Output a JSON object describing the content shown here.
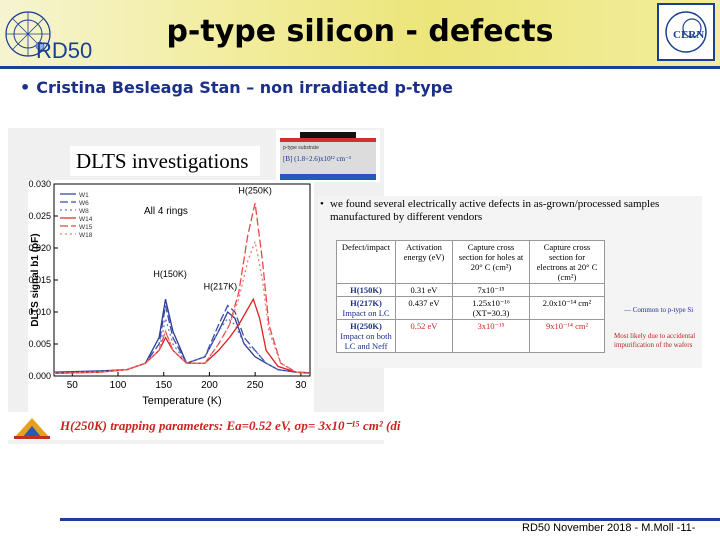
{
  "header": {
    "rd50_logo_text": "RD50",
    "title": "p-type silicon - defects",
    "cern_logo_text": "CERN"
  },
  "bullet": "Cristina Besleaga Stan – non irradiated p-type",
  "figure": {
    "dlts_title": "DLTS investigations",
    "inset_label_small": "p-type substrate",
    "inset_label_formula": "[B] (1.8÷2.6)x10¹² cm⁻³",
    "trap_text": "H(250K) trapping parameters: Ea=0.52 eV, σp= 3x10⁻¹⁵ cm² (di"
  },
  "chart_data": {
    "type": "line",
    "xlabel": "Temperature (K)",
    "ylabel": "DLTS signal b1 (pF)",
    "xlim": [
      30,
      310
    ],
    "ylim": [
      0.0,
      0.03
    ],
    "x_ticks": [
      "50",
      "100",
      "150",
      "200",
      "250",
      "30"
    ],
    "y_ticks": [
      "0.000",
      "0.005",
      "0.010",
      "0.015",
      "0.020",
      "0.025",
      "0.030"
    ],
    "annotation_rings": "All 4 rings",
    "peak_labels": [
      "H(150K)",
      "H(217K)",
      "H(250K)"
    ],
    "legend_position": "top-left",
    "series": [
      {
        "name": "W1",
        "color": "#2b3a9a",
        "dash": "",
        "x": [
          30,
          80,
          110,
          130,
          145,
          152,
          160,
          175,
          195,
          210,
          220,
          228,
          238,
          250,
          262,
          275,
          295,
          310
        ],
        "y": [
          0.0006,
          0.0008,
          0.001,
          0.002,
          0.006,
          0.012,
          0.007,
          0.002,
          0.003,
          0.007,
          0.01,
          0.009,
          0.005,
          0.003,
          0.002,
          0.001,
          0.0006,
          0.0005
        ]
      },
      {
        "name": "W6",
        "color": "#3a4aa8",
        "dash": "8 3",
        "x": [
          30,
          80,
          110,
          130,
          145,
          152,
          160,
          175,
          195,
          210,
          220,
          228,
          238,
          250,
          262,
          275,
          295,
          310
        ],
        "y": [
          0.0005,
          0.0007,
          0.001,
          0.002,
          0.005,
          0.011,
          0.006,
          0.002,
          0.003,
          0.008,
          0.011,
          0.01,
          0.006,
          0.004,
          0.002,
          0.001,
          0.0006,
          0.0005
        ]
      },
      {
        "name": "W8",
        "color": "#6a78c8",
        "dash": "2 3",
        "x": [
          30,
          80,
          110,
          130,
          145,
          152,
          160,
          175,
          195,
          210,
          220,
          228,
          238,
          250,
          262,
          275,
          295,
          310
        ],
        "y": [
          0.0005,
          0.0007,
          0.001,
          0.002,
          0.004,
          0.009,
          0.005,
          0.002,
          0.003,
          0.007,
          0.009,
          0.008,
          0.005,
          0.004,
          0.002,
          0.001,
          0.0006,
          0.0005
        ]
      },
      {
        "name": "W14",
        "color": "#e02020",
        "dash": "",
        "x": [
          30,
          80,
          110,
          130,
          145,
          152,
          160,
          175,
          195,
          210,
          222,
          232,
          240,
          248,
          255,
          262,
          275,
          295,
          310
        ],
        "y": [
          0.0004,
          0.0006,
          0.001,
          0.002,
          0.004,
          0.006,
          0.004,
          0.002,
          0.002,
          0.004,
          0.006,
          0.008,
          0.01,
          0.012,
          0.009,
          0.004,
          0.0015,
          0.0006,
          0.0004
        ]
      },
      {
        "name": "W15",
        "color": "#e84848",
        "dash": "8 3",
        "x": [
          30,
          80,
          110,
          130,
          145,
          152,
          160,
          175,
          195,
          210,
          222,
          232,
          242,
          250,
          258,
          265,
          278,
          295,
          310
        ],
        "y": [
          0.0004,
          0.0006,
          0.001,
          0.002,
          0.004,
          0.007,
          0.004,
          0.002,
          0.002,
          0.005,
          0.008,
          0.013,
          0.022,
          0.027,
          0.018,
          0.008,
          0.002,
          0.0006,
          0.0004
        ]
      },
      {
        "name": "W18",
        "color": "#f07a7a",
        "dash": "2 3",
        "x": [
          30,
          80,
          110,
          130,
          145,
          152,
          160,
          175,
          195,
          210,
          222,
          232,
          242,
          250,
          258,
          265,
          278,
          295,
          310
        ],
        "y": [
          0.0004,
          0.0006,
          0.001,
          0.002,
          0.004,
          0.007,
          0.004,
          0.002,
          0.002,
          0.005,
          0.008,
          0.012,
          0.018,
          0.021,
          0.015,
          0.007,
          0.002,
          0.0006,
          0.0004
        ]
      }
    ]
  },
  "side": {
    "bullet_text": "we found several electrically active defects in as-grown/processed samples manufactured by different vendors",
    "table_headers": [
      "Defect/impact",
      "Activation energy (eV)",
      "Capture cross section for holes at 20° C (cm²)",
      "Capture cross section for electrons at 20° C (cm²)"
    ],
    "rows": [
      {
        "name": "H(150K)",
        "sub": "",
        "energy": "0.31 eV",
        "holes": "7x10⁻¹⁵",
        "electrons": ""
      },
      {
        "name": "H(217K)",
        "sub": "Impact on LC",
        "energy": "0.437 eV",
        "holes": "1.25x10⁻¹⁶ (XT=30.3)",
        "electrons": "2.0x10⁻¹⁴ cm²"
      },
      {
        "name": "H(250K)",
        "sub": "Impact on both LC and Neff",
        "energy": "0.52 eV",
        "holes": "3x10⁻¹⁵",
        "electrons": "9x10⁻¹⁴ cm²"
      }
    ],
    "note_common": "Common to p-type Si",
    "note_accidental": "Most likely due to accidental impurification of the wafers"
  },
  "footer": "RD50 November 2018 - M.Moll -11-"
}
